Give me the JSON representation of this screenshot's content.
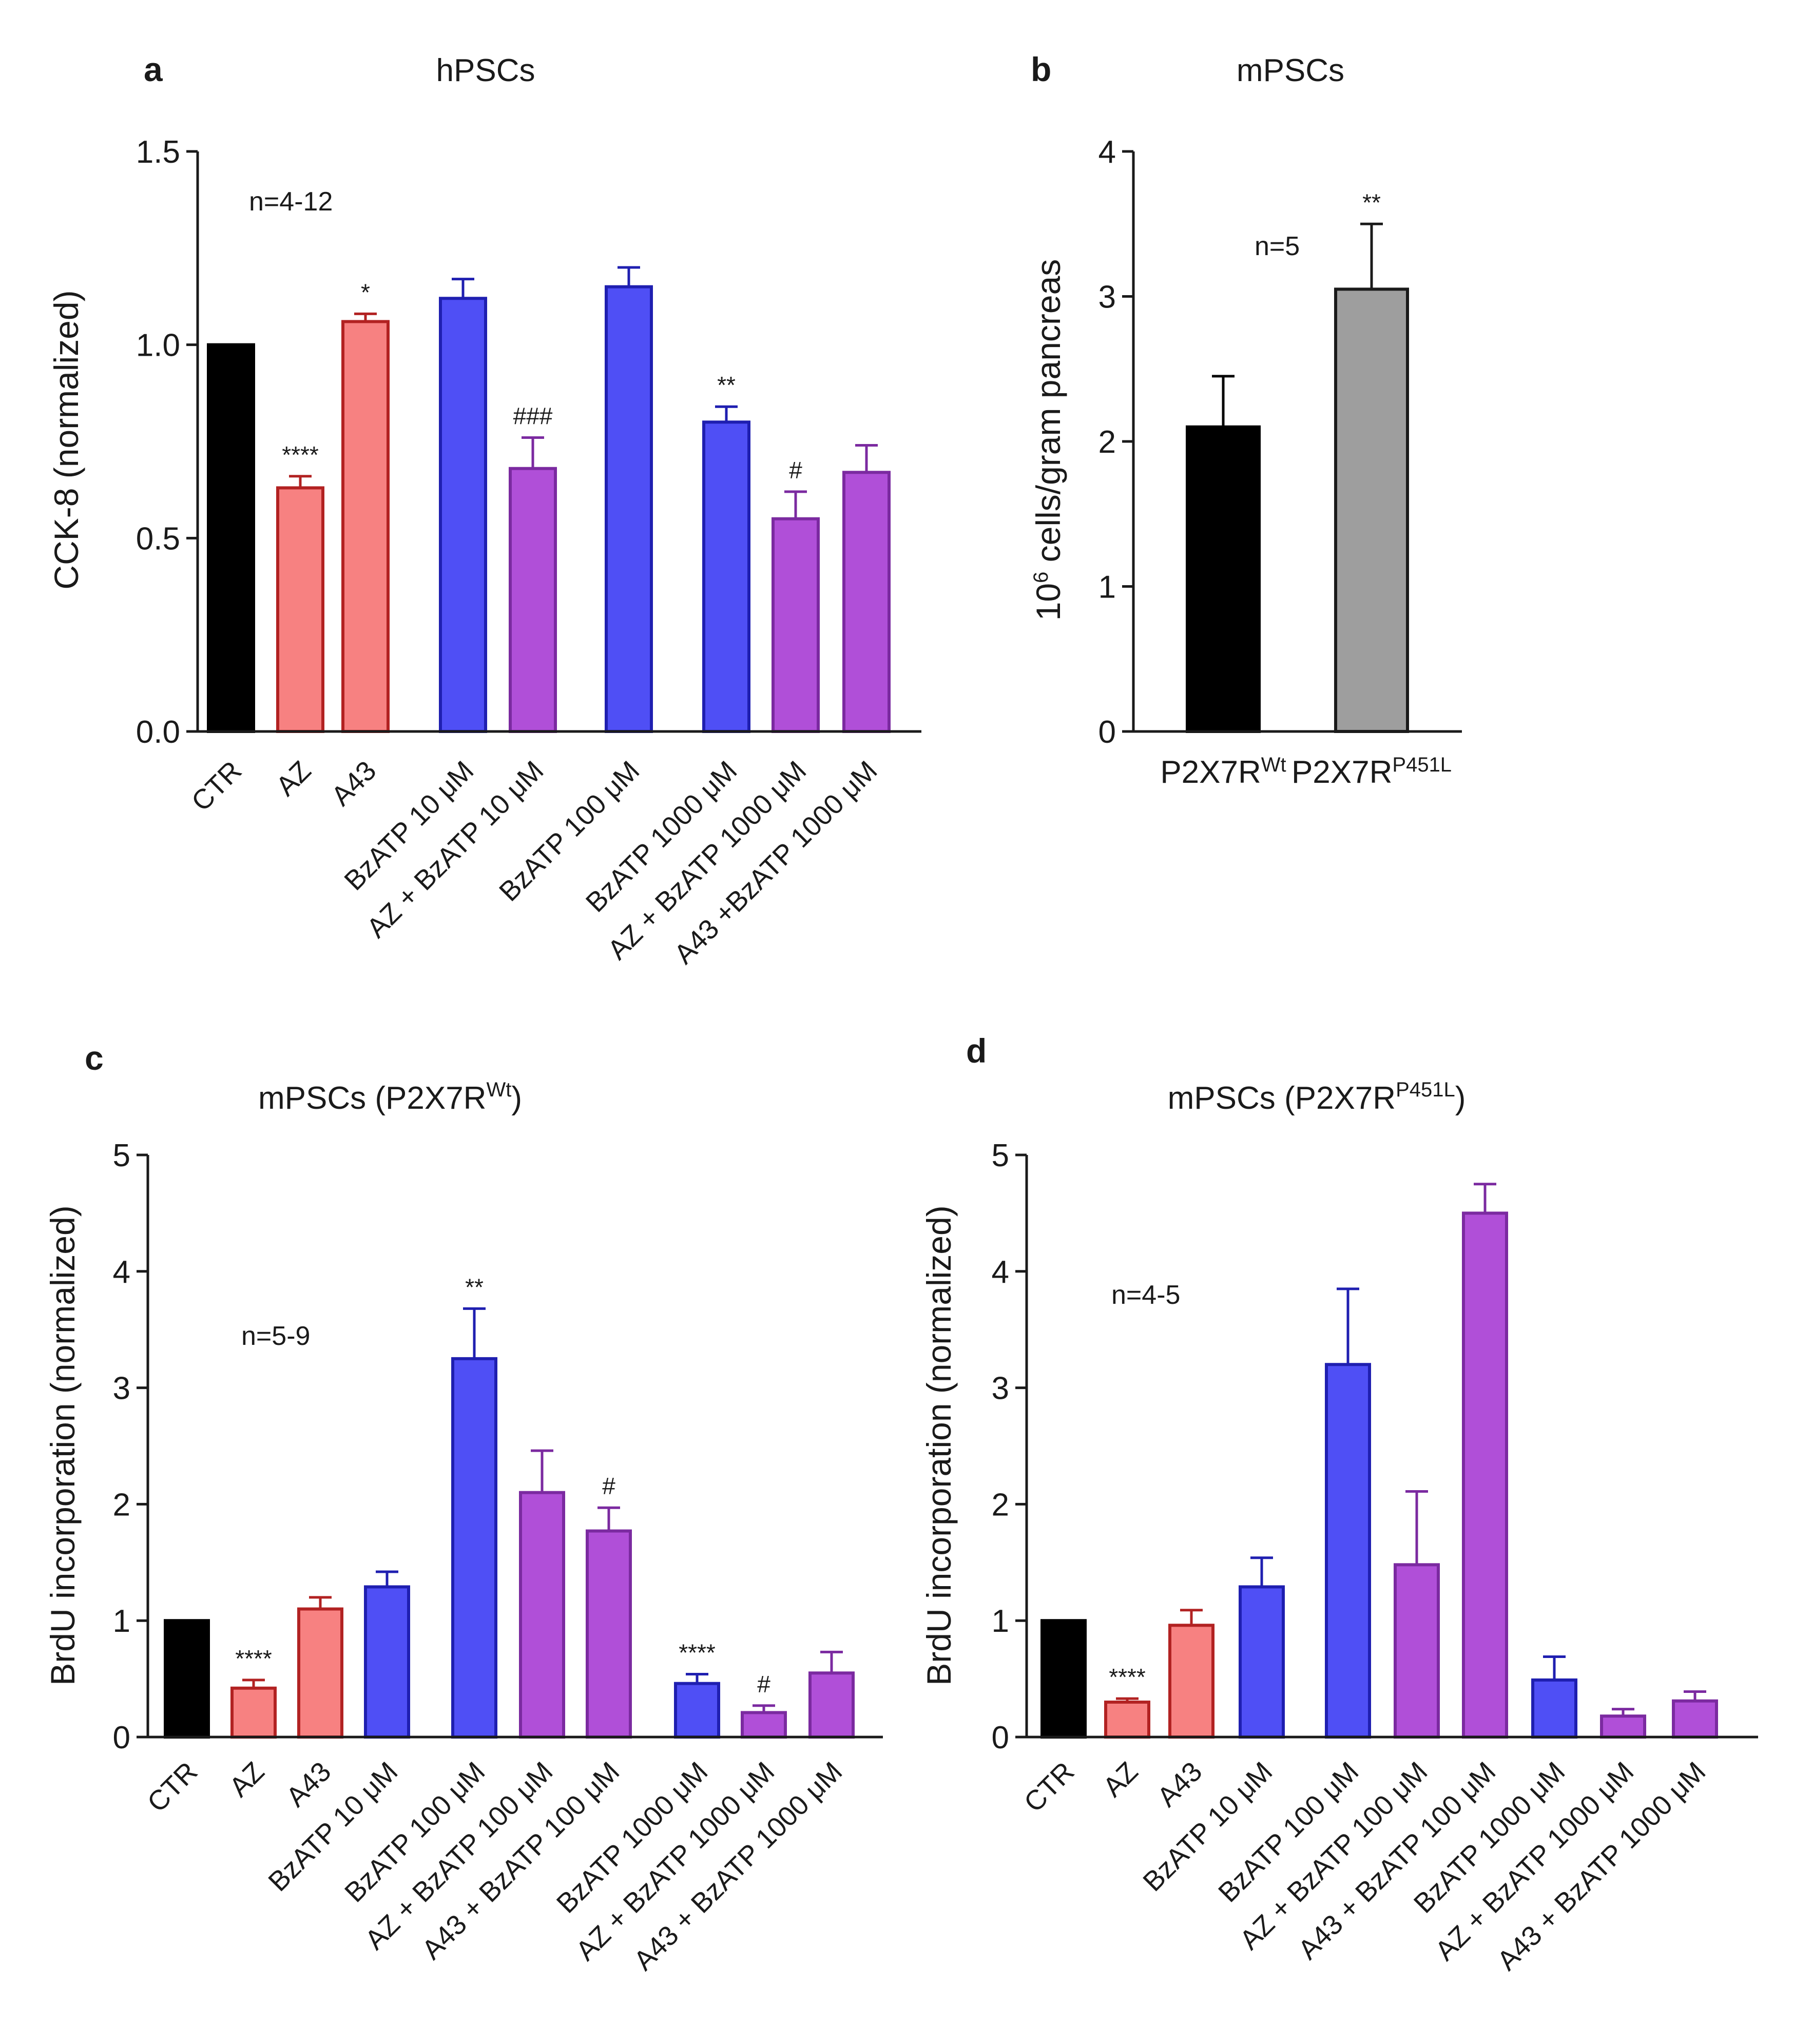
{
  "chart_data": [
    {
      "panel": "a",
      "type": "bar",
      "title": "hPSCs",
      "ylabel": "CCK-8 (normalized)",
      "ylim": [
        0,
        1.5
      ],
      "yticks": [
        "0.0",
        "0.5",
        "1.0",
        "1.5"
      ],
      "n_label": "n=4-12",
      "bars": [
        {
          "label": "CTR",
          "value": 1.0,
          "error": 0.0,
          "color": "#000000",
          "stroke": "#000000",
          "sig": ""
        },
        {
          "label": "AZ",
          "value": 0.63,
          "error": 0.03,
          "color": "#f78181",
          "stroke": "#b22222",
          "sig": "****"
        },
        {
          "label": "A43",
          "value": 1.06,
          "error": 0.02,
          "color": "#f78181",
          "stroke": "#b22222",
          "sig": "*"
        },
        {
          "label": "BzATP 10 μM",
          "value": 1.12,
          "error": 0.05,
          "color": "#4f4ff5",
          "stroke": "#1f1fb0",
          "sig": ""
        },
        {
          "label": "AZ + BzATP 10 μM",
          "value": 0.68,
          "error": 0.08,
          "color": "#b04fd8",
          "stroke": "#7b2aa0",
          "sig": "###"
        },
        {
          "label": "BzATP 100 μM",
          "value": 1.15,
          "error": 0.05,
          "color": "#4f4ff5",
          "stroke": "#1f1fb0",
          "sig": ""
        },
        {
          "label": "BzATP 1000 μM",
          "value": 0.8,
          "error": 0.04,
          "color": "#4f4ff5",
          "stroke": "#1f1fb0",
          "sig": "**"
        },
        {
          "label": "AZ + BzATP 1000 μM",
          "value": 0.55,
          "error": 0.07,
          "color": "#b04fd8",
          "stroke": "#7b2aa0",
          "sig": "#"
        },
        {
          "label": "A43 +BzATP 1000 μM",
          "value": 0.67,
          "error": 0.07,
          "color": "#b04fd8",
          "stroke": "#7b2aa0",
          "sig": ""
        }
      ]
    },
    {
      "panel": "b",
      "type": "bar",
      "title": "mPSCs",
      "ylabel_main": "10",
      "ylabel_sup": "6",
      "ylabel_rest": " cells/gram pancreas",
      "ylim": [
        0,
        4
      ],
      "yticks": [
        "0",
        "1",
        "2",
        "3",
        "4"
      ],
      "n_label": "n=5",
      "bars": [
        {
          "label_main": "P2X7R",
          "label_sup": "Wt",
          "value": 2.1,
          "error": 0.35,
          "color": "#000000",
          "stroke": "#000000",
          "sig": ""
        },
        {
          "label_main": "P2X7R",
          "label_sup": "P451L",
          "value": 3.05,
          "error": 0.45,
          "color": "#9e9e9e",
          "stroke": "#1a1a1a",
          "sig": "**"
        }
      ]
    },
    {
      "panel": "c",
      "type": "bar",
      "title_main": "mPSCs (P2X7R",
      "title_sup": "Wt",
      "title_end": ")",
      "ylabel": "BrdU incorporation (normalized)",
      "ylim": [
        0,
        5
      ],
      "yticks": [
        "0",
        "1",
        "2",
        "3",
        "4",
        "5"
      ],
      "n_label": "n=5-9",
      "bars": [
        {
          "label": "CTR",
          "value": 1.0,
          "error": 0.0,
          "color": "#000000",
          "stroke": "#000000",
          "sig": ""
        },
        {
          "label": "AZ",
          "value": 0.42,
          "error": 0.07,
          "color": "#f78181",
          "stroke": "#b22222",
          "sig": "****"
        },
        {
          "label": "A43",
          "value": 1.1,
          "error": 0.1,
          "color": "#f78181",
          "stroke": "#b22222",
          "sig": ""
        },
        {
          "label": "BzATP 10 μM",
          "value": 1.29,
          "error": 0.13,
          "color": "#4f4ff5",
          "stroke": "#1f1fb0",
          "sig": ""
        },
        {
          "label": "BzATP 100 μM",
          "value": 3.25,
          "error": 0.43,
          "color": "#4f4ff5",
          "stroke": "#1f1fb0",
          "sig": "**"
        },
        {
          "label": "AZ + BzATP 100 μM",
          "value": 2.1,
          "error": 0.36,
          "color": "#b04fd8",
          "stroke": "#7b2aa0",
          "sig": ""
        },
        {
          "label": "A43 + BzATP 100 μM",
          "value": 1.77,
          "error": 0.2,
          "color": "#b04fd8",
          "stroke": "#7b2aa0",
          "sig": "#"
        },
        {
          "label": "BzATP 1000 μM",
          "value": 0.46,
          "error": 0.08,
          "color": "#4f4ff5",
          "stroke": "#1f1fb0",
          "sig": "****"
        },
        {
          "label": "AZ + BzATP 1000 μM",
          "value": 0.21,
          "error": 0.06,
          "color": "#b04fd8",
          "stroke": "#7b2aa0",
          "sig": "#"
        },
        {
          "label": "A43 + BzATP 1000 μM",
          "value": 0.55,
          "error": 0.18,
          "color": "#b04fd8",
          "stroke": "#7b2aa0",
          "sig": ""
        }
      ]
    },
    {
      "panel": "d",
      "type": "bar",
      "title_main": "mPSCs (P2X7R",
      "title_sup": "P451L",
      "title_end": ")",
      "ylabel": "BrdU incorporation (normalized)",
      "ylim": [
        0,
        5
      ],
      "yticks": [
        "0",
        "1",
        "2",
        "3",
        "4",
        "5"
      ],
      "n_label": "n=4-5",
      "bars": [
        {
          "label": "CTR",
          "value": 1.0,
          "error": 0.0,
          "color": "#000000",
          "stroke": "#000000",
          "sig": ""
        },
        {
          "label": "AZ",
          "value": 0.3,
          "error": 0.03,
          "color": "#f78181",
          "stroke": "#b22222",
          "sig": "****"
        },
        {
          "label": "A43",
          "value": 0.96,
          "error": 0.13,
          "color": "#f78181",
          "stroke": "#b22222",
          "sig": ""
        },
        {
          "label": "BzATP 10 μM",
          "value": 1.29,
          "error": 0.25,
          "color": "#4f4ff5",
          "stroke": "#1f1fb0",
          "sig": ""
        },
        {
          "label": "BzATP 100 μM",
          "value": 3.2,
          "error": 0.65,
          "color": "#4f4ff5",
          "stroke": "#1f1fb0",
          "sig": ""
        },
        {
          "label": "AZ + BzATP 100 μM",
          "value": 1.48,
          "error": 0.63,
          "color": "#b04fd8",
          "stroke": "#7b2aa0",
          "sig": ""
        },
        {
          "label": "A43 + BzATP 100 μM",
          "value": 4.5,
          "error": 0.25,
          "color": "#b04fd8",
          "stroke": "#7b2aa0",
          "sig": ""
        },
        {
          "label": "BzATP 1000 μM",
          "value": 0.49,
          "error": 0.2,
          "color": "#4f4ff5",
          "stroke": "#1f1fb0",
          "sig": ""
        },
        {
          "label": "AZ + BzATP 1000 μM",
          "value": 0.18,
          "error": 0.06,
          "color": "#b04fd8",
          "stroke": "#7b2aa0",
          "sig": ""
        },
        {
          "label": "A43 + BzATP 1000 μM",
          "value": 0.31,
          "error": 0.08,
          "color": "#b04fd8",
          "stroke": "#7b2aa0",
          "sig": ""
        }
      ]
    }
  ]
}
